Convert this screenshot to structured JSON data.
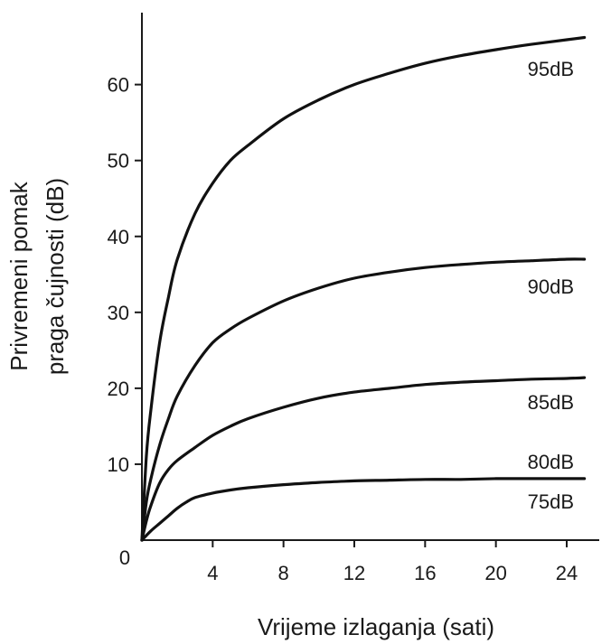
{
  "chart_data": {
    "type": "line",
    "title": "",
    "xlabel": "Vrijeme izlaganja (sati)",
    "ylabel_lines": [
      "Privremeni pomak",
      "praga čujnosti (dB)"
    ],
    "xlim": [
      0,
      28
    ],
    "ylim": [
      0,
      70
    ],
    "x_ticks": [
      4,
      8,
      12,
      16,
      20,
      24
    ],
    "y_ticks": [
      10,
      20,
      30,
      40,
      50,
      60
    ],
    "origin_label": "0",
    "grid": false,
    "series": [
      {
        "name": "95dB",
        "x": [
          0,
          0.25,
          0.5,
          1,
          1.5,
          2,
          3,
          4,
          5,
          6,
          8,
          10,
          12,
          14,
          16,
          18,
          20,
          22,
          24,
          25
        ],
        "y": [
          0,
          11,
          17,
          26,
          32,
          37,
          43,
          47,
          50,
          52,
          55.5,
          58,
          60,
          61.5,
          62.8,
          63.8,
          64.6,
          65.3,
          65.9,
          66.2
        ]
      },
      {
        "name": "90dB",
        "x": [
          0,
          0.25,
          0.5,
          1,
          1.5,
          2,
          3,
          4,
          5,
          6,
          8,
          10,
          12,
          14,
          16,
          18,
          20,
          22,
          24,
          25
        ],
        "y": [
          0,
          5,
          8,
          12.5,
          16,
          19,
          23,
          26,
          27.8,
          29.2,
          31.5,
          33.2,
          34.5,
          35.3,
          35.9,
          36.3,
          36.6,
          36.8,
          37,
          37
        ]
      },
      {
        "name": "85dB",
        "x": [
          0,
          0.25,
          0.5,
          1,
          1.5,
          2,
          3,
          4,
          5,
          6,
          8,
          10,
          12,
          14,
          16,
          18,
          20,
          22,
          24,
          25
        ],
        "y": [
          0,
          2.5,
          4.5,
          7.5,
          9.3,
          10.5,
          12.2,
          13.8,
          15,
          16,
          17.5,
          18.7,
          19.5,
          20,
          20.5,
          20.8,
          21,
          21.2,
          21.3,
          21.4
        ]
      },
      {
        "name": "80dB",
        "x": [],
        "y": []
      },
      {
        "name": "75dB",
        "x": [
          0,
          0.5,
          1,
          1.5,
          2,
          2.5,
          3,
          4,
          5,
          6,
          8,
          10,
          12,
          14,
          16,
          18,
          20,
          22,
          24,
          25
        ],
        "y": [
          0,
          1.2,
          2.2,
          3.2,
          4.2,
          5,
          5.6,
          6.2,
          6.6,
          6.9,
          7.3,
          7.6,
          7.8,
          7.9,
          8,
          8,
          8.1,
          8.1,
          8.1,
          8.1
        ]
      }
    ]
  }
}
